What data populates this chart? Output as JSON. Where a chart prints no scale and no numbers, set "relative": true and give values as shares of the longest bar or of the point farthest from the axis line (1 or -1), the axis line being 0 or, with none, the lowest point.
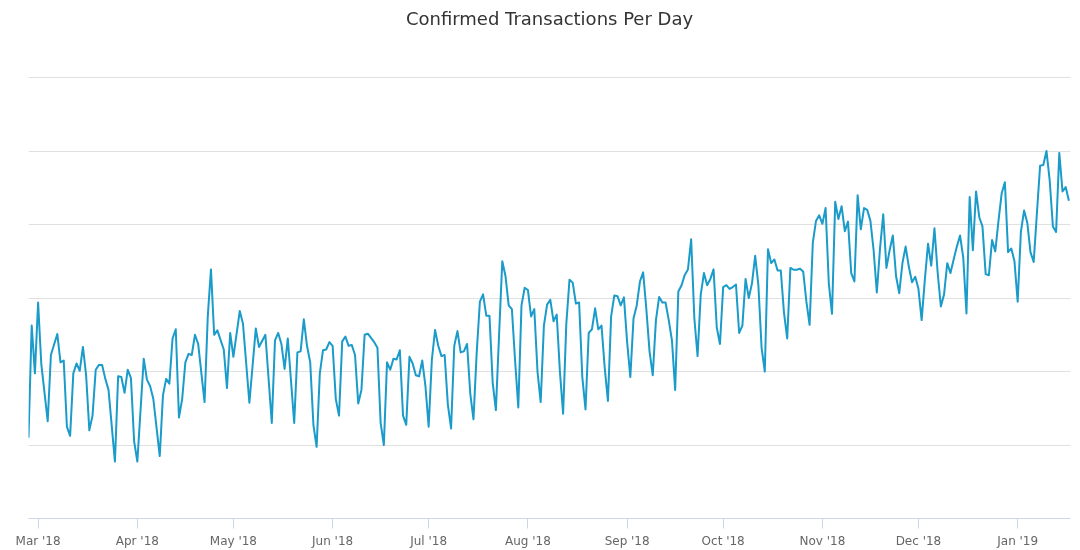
{
  "chart_data": {
    "type": "line",
    "title": "Confirmed Transactions Per Day",
    "relative": true,
    "grid": "y",
    "xlim": [
      "2018-02-26",
      "2019-01-17T12:00"
    ],
    "xticks": [
      {
        "value": "2018-03-01",
        "label": "Mar '18"
      },
      {
        "value": "2018-04-01",
        "label": "Apr '18"
      },
      {
        "value": "2018-05-01",
        "label": "May '18"
      },
      {
        "value": "2018-06-01",
        "label": "Jun '18"
      },
      {
        "value": "2018-07-01",
        "label": "Jul '18"
      },
      {
        "value": "2018-08-01",
        "label": "Aug '18"
      },
      {
        "value": "2018-09-01",
        "label": "Sep '18"
      },
      {
        "value": "2018-10-01",
        "label": "Oct '18"
      },
      {
        "value": "2018-11-01",
        "label": "Nov '18"
      },
      {
        "value": "2018-12-01",
        "label": "Dec '18"
      },
      {
        "value": "2019-01-01",
        "label": "Jan '19"
      }
    ],
    "x": [
      "2018-02-26",
      "2018-02-27",
      "2018-02-28",
      "2018-03-01",
      "2018-03-02",
      "2018-03-04",
      "2018-03-05",
      "2018-03-07",
      "2018-03-08",
      "2018-03-09",
      "2018-03-10",
      "2018-03-11",
      "2018-03-12",
      "2018-03-13",
      "2018-03-14",
      "2018-03-15",
      "2018-03-16",
      "2018-03-17",
      "2018-03-18",
      "2018-03-19",
      "2018-03-20",
      "2018-03-21",
      "2018-03-22",
      "2018-03-23",
      "2018-03-25",
      "2018-03-26",
      "2018-03-27",
      "2018-03-28",
      "2018-03-29",
      "2018-03-30",
      "2018-03-31",
      "2018-04-01",
      "2018-04-03",
      "2018-04-04",
      "2018-04-05",
      "2018-04-06",
      "2018-04-08",
      "2018-04-09",
      "2018-04-10",
      "2018-04-11",
      "2018-04-12",
      "2018-04-13",
      "2018-04-14",
      "2018-04-15",
      "2018-04-16",
      "2018-04-17",
      "2018-04-18",
      "2018-04-19",
      "2018-04-20",
      "2018-04-22",
      "2018-04-23",
      "2018-04-24",
      "2018-04-25",
      "2018-04-26",
      "2018-04-28",
      "2018-04-29",
      "2018-04-30",
      "2018-05-01",
      "2018-05-03",
      "2018-05-04",
      "2018-05-06",
      "2018-05-08",
      "2018-05-09",
      "2018-05-11",
      "2018-05-13",
      "2018-05-14",
      "2018-05-15",
      "2018-05-16",
      "2018-05-17",
      "2018-05-18",
      "2018-05-20",
      "2018-05-21",
      "2018-05-22",
      "2018-05-23",
      "2018-05-24",
      "2018-05-25",
      "2018-05-26",
      "2018-05-27",
      "2018-05-28",
      "2018-05-29",
      "2018-05-30",
      "2018-05-31",
      "2018-06-01",
      "2018-06-02",
      "2018-06-03",
      "2018-06-04",
      "2018-06-05",
      "2018-06-06",
      "2018-06-07",
      "2018-06-08",
      "2018-06-09",
      "2018-06-10",
      "2018-06-11",
      "2018-06-12",
      "2018-06-14",
      "2018-06-15",
      "2018-06-16",
      "2018-06-17",
      "2018-06-18",
      "2018-06-19",
      "2018-06-20",
      "2018-06-21",
      "2018-06-22",
      "2018-06-23",
      "2018-06-24",
      "2018-06-25",
      "2018-06-26",
      "2018-06-27",
      "2018-06-28",
      "2018-06-29",
      "2018-06-30",
      "2018-07-01",
      "2018-07-02",
      "2018-07-03",
      "2018-07-04",
      "2018-07-05",
      "2018-07-06",
      "2018-07-07",
      "2018-07-08",
      "2018-07-09",
      "2018-07-10",
      "2018-07-11",
      "2018-07-12",
      "2018-07-13",
      "2018-07-14",
      "2018-07-15",
      "2018-07-16",
      "2018-07-17",
      "2018-07-18",
      "2018-07-19",
      "2018-07-20",
      "2018-07-21",
      "2018-07-22",
      "2018-07-23",
      "2018-07-24",
      "2018-07-25",
      "2018-07-26",
      "2018-07-27",
      "2018-07-28",
      "2018-07-29",
      "2018-07-30",
      "2018-07-31",
      "2018-08-01",
      "2018-08-02",
      "2018-08-03",
      "2018-08-04",
      "2018-08-05",
      "2018-08-06",
      "2018-08-07",
      "2018-08-08",
      "2018-08-09",
      "2018-08-10",
      "2018-08-11",
      "2018-08-12",
      "2018-08-13",
      "2018-08-14",
      "2018-08-15",
      "2018-08-16",
      "2018-08-17",
      "2018-08-18",
      "2018-08-19",
      "2018-08-20",
      "2018-08-21",
      "2018-08-22",
      "2018-08-23",
      "2018-08-24",
      "2018-08-25",
      "2018-08-26",
      "2018-08-27",
      "2018-08-28",
      "2018-08-29",
      "2018-08-30",
      "2018-08-31",
      "2018-09-01",
      "2018-09-02",
      "2018-09-03",
      "2018-09-04",
      "2018-09-05",
      "2018-09-06",
      "2018-09-07",
      "2018-09-08",
      "2018-09-09",
      "2018-09-10",
      "2018-09-11",
      "2018-09-12",
      "2018-09-13",
      "2018-09-14",
      "2018-09-15",
      "2018-09-16",
      "2018-09-17",
      "2018-09-18",
      "2018-09-19",
      "2018-09-20",
      "2018-09-21",
      "2018-09-22",
      "2018-09-23",
      "2018-09-24",
      "2018-09-25",
      "2018-09-26",
      "2018-09-27",
      "2018-09-28",
      "2018-09-29",
      "2018-09-30",
      "2018-10-01",
      "2018-10-02",
      "2018-10-03",
      "2018-10-04",
      "2018-10-05",
      "2018-10-06",
      "2018-10-07",
      "2018-10-08",
      "2018-10-09",
      "2018-10-10",
      "2018-10-11",
      "2018-10-12",
      "2018-10-13",
      "2018-10-14",
      "2018-10-15",
      "2018-10-16",
      "2018-10-17",
      "2018-10-18",
      "2018-10-19",
      "2018-10-20",
      "2018-10-21",
      "2018-10-22",
      "2018-10-23",
      "2018-10-24",
      "2018-10-25",
      "2018-10-26",
      "2018-10-27",
      "2018-10-28",
      "2018-10-29",
      "2018-10-30",
      "2018-10-31",
      "2018-11-01",
      "2018-11-02",
      "2018-11-03",
      "2018-11-04",
      "2018-11-05",
      "2018-11-06",
      "2018-11-07",
      "2018-11-08",
      "2018-11-09",
      "2018-11-10",
      "2018-11-11",
      "2018-11-12",
      "2018-11-13",
      "2018-11-14",
      "2018-11-15",
      "2018-11-16",
      "2018-11-17",
      "2018-11-18",
      "2018-11-19",
      "2018-11-20",
      "2018-11-21",
      "2018-11-22",
      "2018-11-23",
      "2018-11-24",
      "2018-11-25",
      "2018-11-26",
      "2018-11-27",
      "2018-11-28",
      "2018-11-29",
      "2018-11-30",
      "2018-12-01",
      "2018-12-02",
      "2018-12-03",
      "2018-12-04",
      "2018-12-05",
      "2018-12-06",
      "2018-12-07",
      "2018-12-08",
      "2018-12-09",
      "2018-12-10",
      "2018-12-11",
      "2018-12-12",
      "2018-12-13",
      "2018-12-14",
      "2018-12-15",
      "2018-12-16",
      "2018-12-17",
      "2018-12-18",
      "2018-12-19",
      "2018-12-20",
      "2018-12-21",
      "2018-12-22",
      "2018-12-23",
      "2018-12-24",
      "2018-12-25",
      "2018-12-26",
      "2018-12-27",
      "2018-12-28",
      "2018-12-29",
      "2018-12-30",
      "2018-12-31",
      "2019-01-01",
      "2019-01-02",
      "2019-01-03",
      "2019-01-04",
      "2019-01-05",
      "2019-01-06",
      "2019-01-07",
      "2019-01-08",
      "2019-01-09",
      "2019-01-10",
      "2019-01-11",
      "2019-01-12",
      "2019-01-13",
      "2019-01-14",
      "2019-01-15",
      "2019-01-16",
      "2019-01-17"
    ],
    "series": [
      {
        "color": "#1a9bc9",
        "values": [
          0.22,
          0.525,
          0.395,
          0.588,
          0.42,
          0.265,
          0.445,
          0.502,
          0.425,
          0.43,
          0.25,
          0.225,
          0.395,
          0.422,
          0.402,
          0.467,
          0.39,
          0.24,
          0.28,
          0.405,
          0.418,
          0.418,
          0.38,
          0.35,
          0.155,
          0.387,
          0.385,
          0.342,
          0.405,
          0.382,
          0.21,
          0.155,
          0.435,
          0.378,
          0.36,
          0.325,
          0.17,
          0.335,
          0.38,
          0.367,
          0.49,
          0.515,
          0.275,
          0.325,
          0.425,
          0.448,
          0.445,
          0.5,
          0.475,
          0.317,
          0.55,
          0.678,
          0.5,
          0.512,
          0.46,
          0.355,
          0.505,
          0.44,
          0.565,
          0.53,
          0.315,
          0.517,
          0.467,
          0.5,
          0.26,
          0.485,
          0.505,
          0.475,
          0.407,
          0.49,
          0.26,
          0.452,
          0.455,
          0.542,
          0.47,
          0.425,
          0.255,
          0.195,
          0.395,
          0.458,
          0.46,
          0.48,
          0.47,
          0.325,
          0.28,
          0.482,
          0.495,
          0.47,
          0.472,
          0.445,
          0.313,
          0.35,
          0.5,
          0.503,
          0.48,
          0.465,
          0.26,
          0.2,
          0.425,
          0.405,
          0.435,
          0.433,
          0.458,
          0.28,
          0.255,
          0.44,
          0.422,
          0.39,
          0.387,
          0.43,
          0.36,
          0.25,
          0.432,
          0.513,
          0.47,
          0.442,
          0.445,
          0.31,
          0.245,
          0.47,
          0.51,
          0.452,
          0.455,
          0.475,
          0.34,
          0.27,
          0.45,
          0.59,
          0.61,
          0.552,
          0.552,
          0.37,
          0.295,
          0.5,
          0.7,
          0.66,
          0.58,
          0.57,
          0.43,
          0.302,
          0.58,
          0.628,
          0.622,
          0.55,
          0.57,
          0.4,
          0.317,
          0.525,
          0.582,
          0.595,
          0.537,
          0.555,
          0.4,
          0.285,
          0.53,
          0.65,
          0.642,
          0.585,
          0.588,
          0.385,
          0.297,
          0.505,
          0.515,
          0.572,
          0.515,
          0.525,
          0.41,
          0.32,
          0.55,
          0.607,
          0.605,
          0.58,
          0.602,
          0.48,
          0.385,
          0.545,
          0.58,
          0.645,
          0.67,
          0.57,
          0.455,
          0.39,
          0.54,
          0.603,
          0.588,
          0.588,
          0.54,
          0.485,
          0.35,
          0.618,
          0.635,
          0.663,
          0.678,
          0.76,
          0.545,
          0.442,
          0.61,
          0.668,
          0.635,
          0.652,
          0.678,
          0.52,
          0.475,
          0.63,
          0.635,
          0.625,
          0.63,
          0.637,
          0.505,
          0.525,
          0.652,
          0.6,
          0.64,
          0.715,
          0.635,
          0.465,
          0.4,
          0.733,
          0.695,
          0.705,
          0.675,
          0.675,
          0.56,
          0.49,
          0.682,
          0.677,
          0.677,
          0.68,
          0.672,
          0.59,
          0.527,
          0.75,
          0.81,
          0.825,
          0.802,
          0.845,
          0.64,
          0.557,
          0.862,
          0.815,
          0.85,
          0.782,
          0.808,
          0.668,
          0.645,
          0.88,
          0.787,
          0.845,
          0.84,
          0.81,
          0.73,
          0.615,
          0.735,
          0.828,
          0.682,
          0.73,
          0.77,
          0.66,
          0.613,
          0.695,
          0.74,
          0.685,
          0.643,
          0.658,
          0.625,
          0.54,
          0.65,
          0.748,
          0.688,
          0.79,
          0.67,
          0.577,
          0.61,
          0.695,
          0.668,
          0.705,
          0.74,
          0.77,
          0.71,
          0.558,
          0.875,
          0.73,
          0.89,
          0.82,
          0.795,
          0.665,
          0.662,
          0.758,
          0.727,
          0.81,
          0.885,
          0.915,
          0.725,
          0.735,
          0.7,
          0.59,
          0.78,
          0.838,
          0.805,
          0.725,
          0.698,
          0.83,
          0.96,
          0.962,
          1,
          0.92,
          0.795,
          0.78,
          0.995,
          0.89,
          0.902,
          0.865
        ]
      }
    ]
  }
}
